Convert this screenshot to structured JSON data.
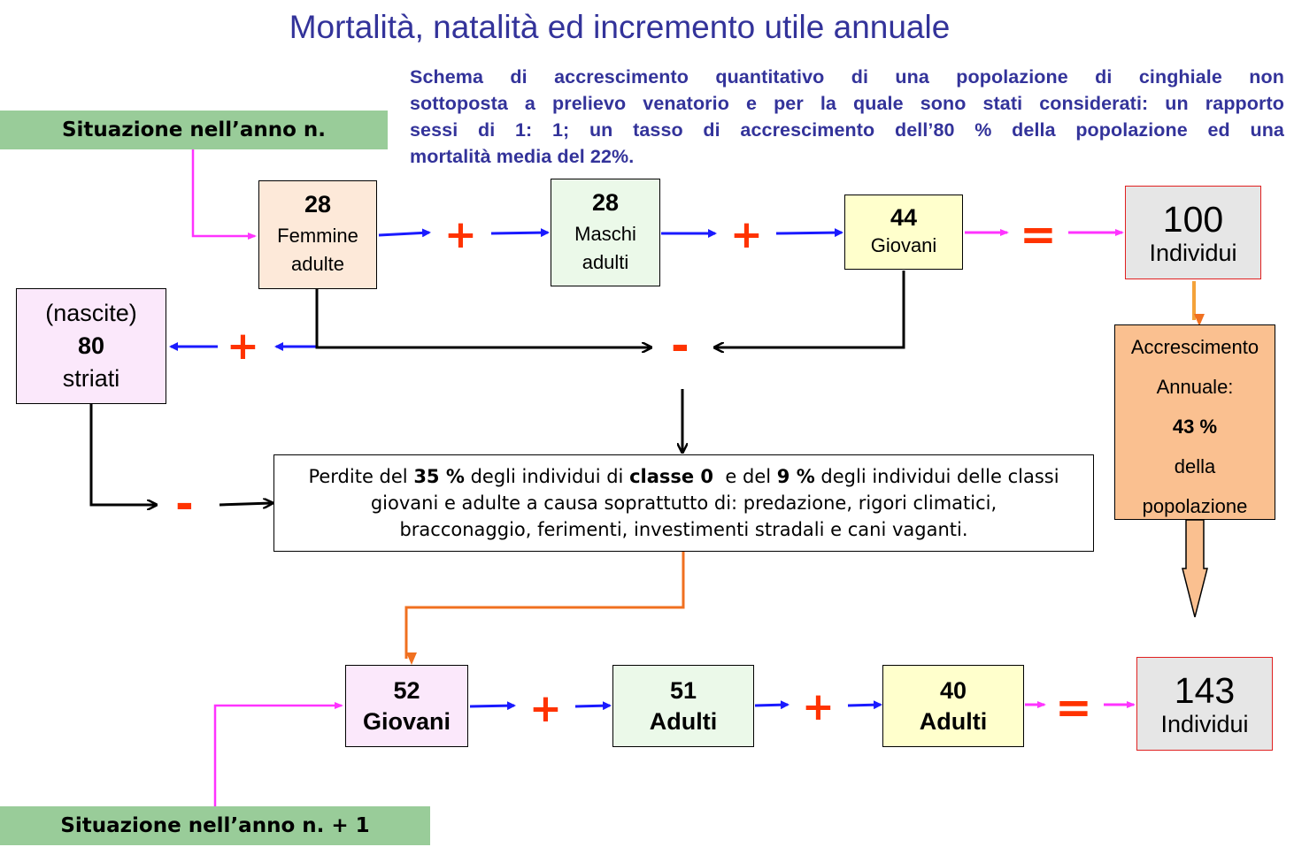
{
  "title": "Mortalità, natalità ed incremento utile annuale",
  "description_lines": [
    "Schema di accrescimento quantitativo di una popolazione di cinghiale non",
    "sottoposta a prelievo venatorio e per la quale sono stati considerati: un rapporto",
    "sessi di 1: 1; un tasso di accrescimento dell’80 % della popolazione ed una",
    "mortalità media del 22%."
  ],
  "year_n": {
    "label": "Situazione nell’anno n."
  },
  "year_n1": {
    "label": "Situazione nell’anno n. + 1"
  },
  "row1": {
    "females": {
      "value": "28",
      "label_1": "Femmine",
      "label_2": "adulte"
    },
    "males": {
      "value": "28",
      "label_1": "Maschi",
      "label_2": "adulti"
    },
    "young": {
      "value": "44",
      "label": "Giovani"
    },
    "total": {
      "value": "100",
      "label": "Individui"
    }
  },
  "births": {
    "line_1": "(nascite)",
    "value": "80",
    "line_3": "striati"
  },
  "growth": {
    "line_1": "Accrescimento",
    "line_2": "Annuale:",
    "value": "43 %",
    "line_4": "della",
    "line_5": "popolazione"
  },
  "losses": {
    "t1": "Perdite del ",
    "b1": "35 %",
    "t2": " degli individui di ",
    "b2": "classe 0",
    "t3": "  e del ",
    "b3": "9 %",
    "t4": " degli individui delle classi",
    "line_2": "giovani e adulte a causa soprattutto di: predazione, rigori climatici,",
    "line_3": "bracconaggio, ferimenti, investimenti stradali e cani vaganti."
  },
  "row2": {
    "young": {
      "value": "52",
      "label": "Giovani"
    },
    "adults_a": {
      "value": "51",
      "label": "Adulti"
    },
    "adults_b": {
      "value": "40",
      "label": "Adulti"
    },
    "total": {
      "value": "143",
      "label": "Individui"
    }
  },
  "operators": {
    "plus": "+",
    "minus": "-",
    "equals": "="
  },
  "colors": {
    "title": "#33339a",
    "banner": "#99cc99",
    "females": "#fde9d9",
    "males": "#ebf9e9",
    "young": "#ffffcc",
    "births": "#fbe8fb",
    "total": "#e6e6e6",
    "growth": "#fac090",
    "operator": "#ff3300",
    "blue_arrow": "#1a1aff",
    "magenta_arrow": "#ff33ff",
    "orange_arrow": "#f07020"
  }
}
